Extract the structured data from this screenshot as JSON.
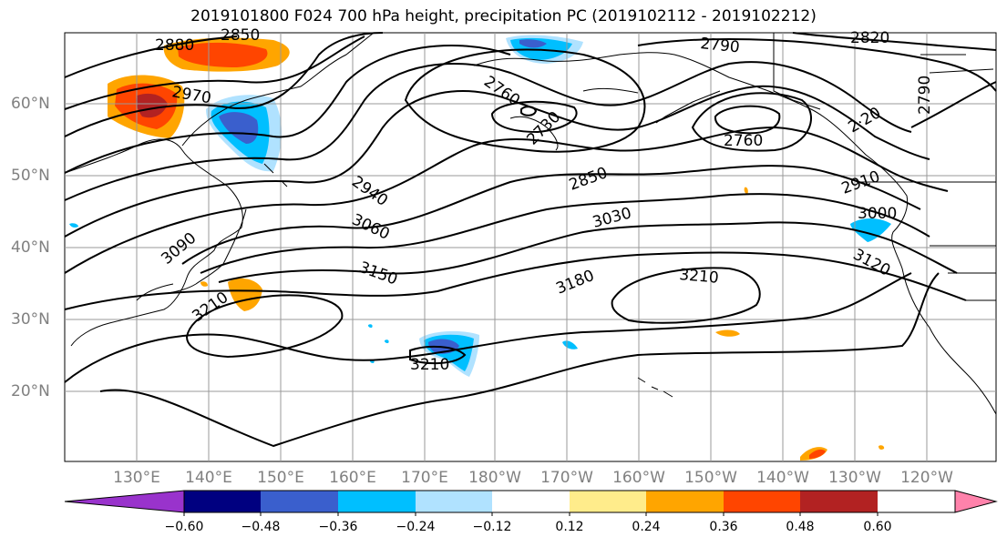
{
  "title": "2019101800 F024 700 hPa height, precipitation PC (2019102112 - 2019102212)",
  "map": {
    "projection": "cylindrical",
    "lat_labels": [
      "60°N",
      "50°N",
      "40°N",
      "30°N",
      "20°N"
    ],
    "lon_labels": [
      "130°E",
      "140°E",
      "150°E",
      "160°E",
      "170°E",
      "180°W",
      "170°W",
      "160°W",
      "150°W",
      "140°W",
      "130°W",
      "120°W"
    ],
    "contour_labels": [
      "2880",
      "2850",
      "2970",
      "2790",
      "2820",
      "2790",
      "2760",
      "2730",
      "2760",
      "2850",
      "2940",
      "2910",
      "3030",
      "3000",
      "3060",
      "3090",
      "3120",
      "3150",
      "3180",
      "3210",
      "3210",
      "3210",
      "2·20"
    ],
    "contour_color": "#000000"
  },
  "colorbar": {
    "tick_labels": [
      "−0.60",
      "−0.48",
      "−0.36",
      "−0.24",
      "−0.12",
      "0.12",
      "0.24",
      "0.36",
      "0.48",
      "0.60"
    ],
    "colors": [
      "#9933cc",
      "#000080",
      "#3a5fcd",
      "#00bfff",
      "#b0e2ff",
      "#ffffff",
      "#ffec8b",
      "#ffa500",
      "#ff4500",
      "#b22222",
      "#ff82ab"
    ]
  }
}
